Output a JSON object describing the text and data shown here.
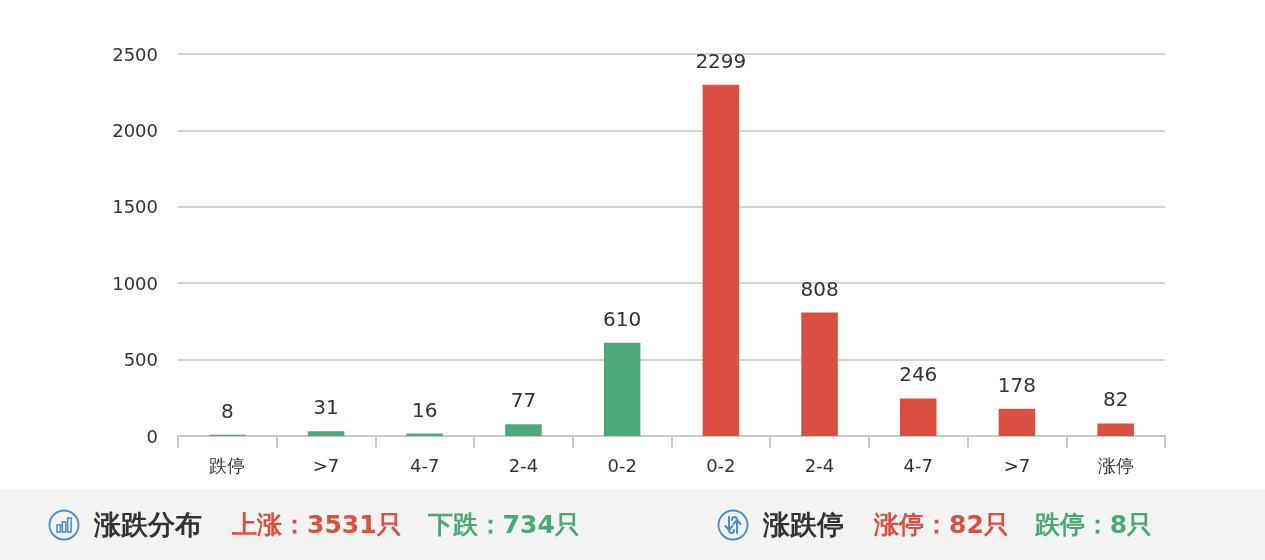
{
  "chart_data": {
    "type": "bar",
    "categories": [
      "跌停",
      ">7",
      "4-7",
      "2-4",
      "0-2",
      "0-2",
      "2-4",
      "4-7",
      ">7",
      "涨停"
    ],
    "values": [
      8,
      31,
      16,
      77,
      610,
      2299,
      808,
      246,
      178,
      82
    ],
    "colors": [
      "#4daa78",
      "#4daa78",
      "#4daa78",
      "#4daa78",
      "#4daa78",
      "#db4f43",
      "#db4f43",
      "#db4f43",
      "#db4f43",
      "#db4f43"
    ],
    "ylim": [
      0,
      2500
    ],
    "yticks": [
      0,
      500,
      1000,
      1500,
      2000,
      2500
    ],
    "grid": "y",
    "data_labels": true,
    "annotations": [
      "涨跌分布",
      "上涨：3531只",
      "下跌：734只",
      "涨跌停",
      "涨停：82只",
      "跌停：8只"
    ]
  }
}
